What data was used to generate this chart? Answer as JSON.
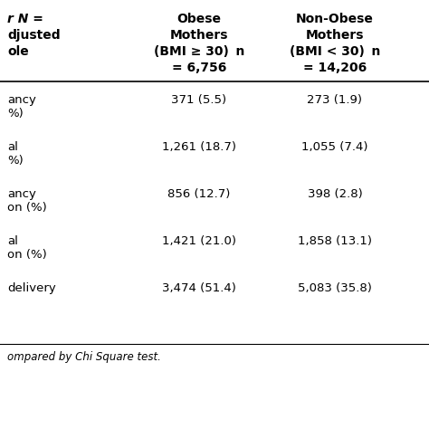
{
  "col_headers": [
    [
      "r N =",
      "Obese",
      "Non-Obese"
    ],
    [
      "djusted",
      "Mothers",
      "Mothers"
    ],
    [
      "ole",
      "(BMI ≥ 30) n",
      "(BMI < 30) n"
    ],
    [
      "",
      "= 6,756",
      "= 14,206"
    ]
  ],
  "rows": [
    [
      "ancy\n%)",
      "371 (5.5)",
      "273 (1.9)"
    ],
    [
      "al\n%)",
      "1,261 (18.7)",
      "1,055 (7.4)"
    ],
    [
      "ancy\non (%)",
      "856 (12.7)",
      "398 (2.8)"
    ],
    [
      "al\non (%)",
      "1,421 (21.0)",
      "1,858 (13.1)"
    ],
    [
      "delivery",
      "3,474 (51.4)",
      "5,083 (35.8)"
    ]
  ],
  "footnote": "ompared by Chi Square test.",
  "background_color": "#ffffff",
  "header_line_color": "#000000",
  "text_color": "#000000",
  "font_size": 9.5,
  "header_font_size": 10.0
}
